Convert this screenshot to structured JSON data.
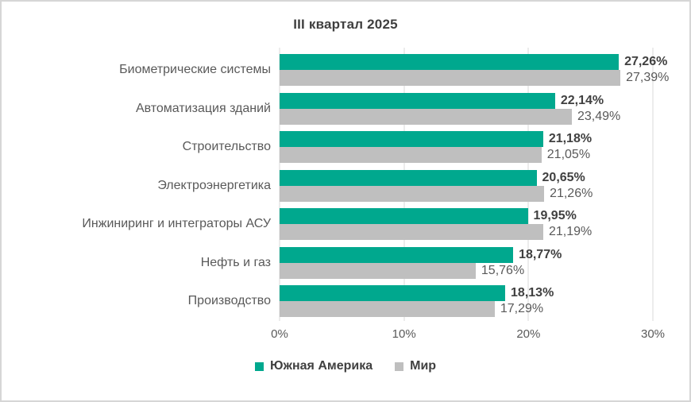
{
  "title": "III квартал 2025",
  "colors": {
    "series_primary": "#00A88E",
    "series_secondary": "#BFBFBF",
    "gridline": "#D9D9D9",
    "title_text": "#3F3F3F",
    "label_text": "#595959",
    "frame_border": "#D6D6D6",
    "background": "#FFFFFF"
  },
  "chart_data": {
    "type": "bar",
    "orientation": "horizontal",
    "title": "III квартал 2025",
    "categories": [
      "Биометрические системы",
      "Автоматизация зданий",
      "Строительство",
      "Электроэнергетика",
      "Инжиниринг и интеграторы АСУ",
      "Нефть и газ",
      "Производство"
    ],
    "series": [
      {
        "name": "Южная Америка",
        "color": "#00A88E",
        "values": [
          27.26,
          22.14,
          21.18,
          20.65,
          19.95,
          18.77,
          18.13
        ],
        "labels": [
          "27,26%",
          "22,14%",
          "21,18%",
          "20,65%",
          "19,95%",
          "18,77%",
          "18,13%"
        ]
      },
      {
        "name": "Мир",
        "color": "#BFBFBF",
        "values": [
          27.39,
          23.49,
          21.05,
          21.26,
          21.19,
          15.76,
          17.29
        ],
        "labels": [
          "27,39%",
          "23,49%",
          "21,05%",
          "21,26%",
          "21,19%",
          "15,76%",
          "17,29%"
        ]
      }
    ],
    "xlim": [
      0,
      30
    ],
    "x_ticks": [
      {
        "value": 0,
        "label": "0%"
      },
      {
        "value": 10,
        "label": "10%"
      },
      {
        "value": 20,
        "label": "20%"
      },
      {
        "value": 30,
        "label": "30%"
      }
    ],
    "grid": true,
    "legend_position": "bottom"
  }
}
